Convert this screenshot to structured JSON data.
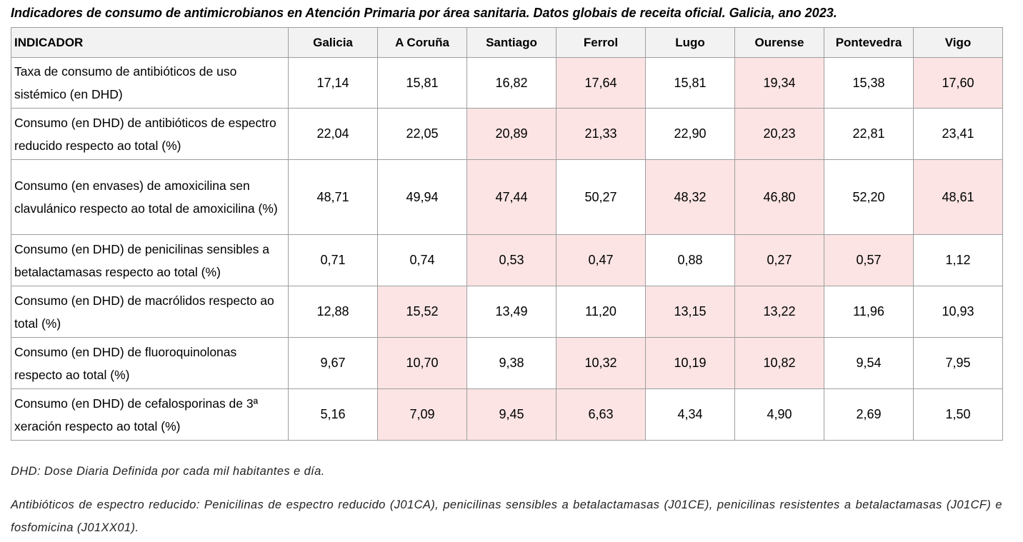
{
  "title": "Indicadores de consumo de antimicrobianos en Atención Primaria por área sanitaria. Datos globais de receita oficial. Galicia, ano 2023.",
  "table": {
    "header": [
      "INDICADOR",
      "Galicia",
      "A Coruña",
      "Santiago",
      "Ferrol",
      "Lugo",
      "Ourense",
      "Pontevedra",
      "Vigo"
    ],
    "rows": [
      {
        "label": "Taxa de consumo de antibióticos de uso sistémico (en DHD)",
        "values": [
          "17,14",
          "15,81",
          "16,82",
          "17,64",
          "15,81",
          "19,34",
          "15,38",
          "17,60"
        ],
        "highlighted": [
          false,
          false,
          false,
          true,
          false,
          true,
          false,
          true
        ]
      },
      {
        "label": "Consumo (en DHD) de antibióticos de espectro reducido respecto ao total (%)",
        "values": [
          "22,04",
          "22,05",
          "20,89",
          "21,33",
          "22,90",
          "20,23",
          "22,81",
          "23,41"
        ],
        "highlighted": [
          false,
          false,
          true,
          true,
          false,
          true,
          false,
          false
        ]
      },
      {
        "label": "Consumo (en envases) de amoxicilina sen clavulánico respecto ao total de amoxicilina (%)",
        "values": [
          "48,71",
          "49,94",
          "47,44",
          "50,27",
          "48,32",
          "46,80",
          "52,20",
          "48,61"
        ],
        "highlighted": [
          false,
          false,
          true,
          false,
          true,
          true,
          false,
          true
        ]
      },
      {
        "label": "Consumo (en DHD) de penicilinas sensibles a betalactamasas respecto ao total (%)",
        "values": [
          "0,71",
          "0,74",
          "0,53",
          "0,47",
          "0,88",
          "0,27",
          "0,57",
          "1,12"
        ],
        "highlighted": [
          false,
          false,
          true,
          true,
          false,
          true,
          true,
          false
        ]
      },
      {
        "label": "Consumo (en DHD) de macrólidos respecto ao total (%)",
        "values": [
          "12,88",
          "15,52",
          "13,49",
          "11,20",
          "13,15",
          "13,22",
          "11,96",
          "10,93"
        ],
        "highlighted": [
          false,
          true,
          false,
          false,
          true,
          true,
          false,
          false
        ]
      },
      {
        "label": "Consumo (en DHD) de fluoroquinolonas respecto ao total (%)",
        "values": [
          "9,67",
          "10,70",
          "9,38",
          "10,32",
          "10,19",
          "10,82",
          "9,54",
          "7,95"
        ],
        "highlighted": [
          false,
          true,
          false,
          true,
          true,
          true,
          false,
          false
        ]
      },
      {
        "label": "Consumo (en DHD) de cefalosporinas de 3ª xeración respecto ao total (%)",
        "values": [
          "5,16",
          "7,09",
          "9,45",
          "6,63",
          "4,34",
          "4,90",
          "2,69",
          "1,50"
        ],
        "highlighted": [
          false,
          true,
          true,
          true,
          false,
          false,
          false,
          false
        ]
      }
    ]
  },
  "notes": [
    "DHD: Dose Diaria Definida por cada mil habitantes e día.",
    "Antibióticos de espectro reducido: Penicilinas de espectro reducido (J01CA), penicilinas sensibles a betalactamasas (J01CE), penicilinas resistentes a betalactamasas (J01CF) e fosfomicina (J01XX01)."
  ]
}
